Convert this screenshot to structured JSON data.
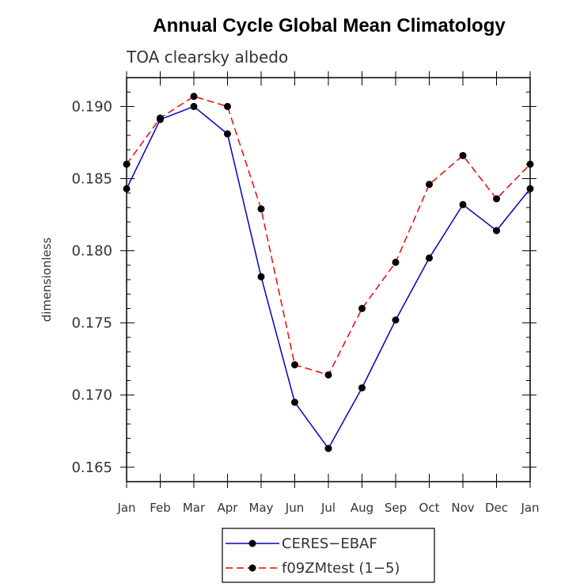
{
  "chart_data": {
    "type": "line",
    "title": "Annual Cycle Global Mean Climatology",
    "subtitle": "TOA clearsky albedo",
    "xlabel": "",
    "ylabel": "dimensionless",
    "categories": [
      "Jan",
      "Feb",
      "Mar",
      "Apr",
      "May",
      "Jun",
      "Jul",
      "Aug",
      "Sep",
      "Oct",
      "Nov",
      "Dec",
      "Jan"
    ],
    "ylim": [
      0.164,
      0.192
    ],
    "yticks": [
      "0.165",
      "0.170",
      "0.175",
      "0.180",
      "0.185",
      "0.190"
    ],
    "series": [
      {
        "name": "CERES−EBAF",
        "color": "#0000cc",
        "dash": "solid",
        "values": [
          0.1843,
          0.1891,
          0.19,
          0.1881,
          0.1782,
          0.1695,
          0.1663,
          0.1705,
          0.1752,
          0.1795,
          0.1832,
          0.1814,
          0.1843
        ]
      },
      {
        "name": "f09ZMtest (1−5)",
        "color": "#ff0000",
        "dash": "dashed",
        "values": [
          0.186,
          0.1892,
          0.1907,
          0.19,
          0.1829,
          0.1721,
          0.1714,
          0.176,
          0.1792,
          0.1846,
          0.1866,
          0.1836,
          0.186
        ]
      }
    ],
    "legend_position": "bottom-center",
    "grid": false
  }
}
